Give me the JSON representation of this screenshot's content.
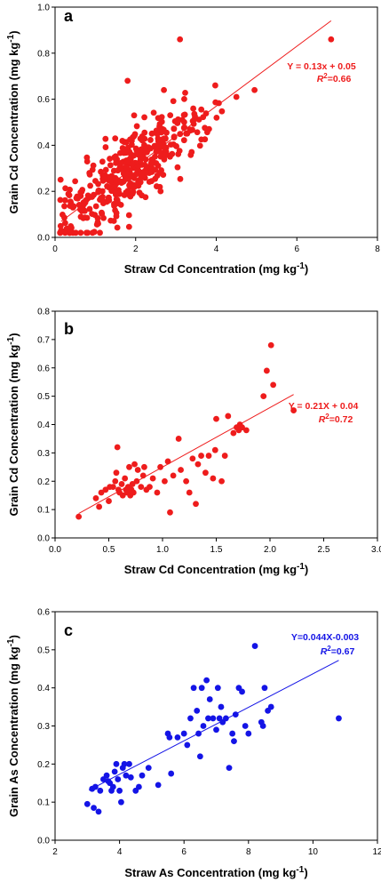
{
  "chart_data": [
    {
      "type": "scatter",
      "panel_label": "a",
      "xlabel": "Straw Cd Concentration (mg kg",
      "ylabel": "Grain Cd Concentration (mg kg",
      "label_exponent": "-1",
      "xlim": [
        0,
        8
      ],
      "ylim": [
        0,
        1.0
      ],
      "xticks": [
        "0",
        "2",
        "4",
        "6",
        "8"
      ],
      "yticks": [
        "0.0",
        "0.2",
        "0.4",
        "0.6",
        "0.8",
        "1.0"
      ],
      "color": "#ee1c1c",
      "equation": "Y = 0.13x + 0.05",
      "r2_value": "=0.66",
      "fit": {
        "slope": 0.13,
        "intercept": 0.05,
        "x_range": [
          0.15,
          6.85
        ]
      },
      "outliers": [
        [
          3.1,
          0.86
        ],
        [
          6.85,
          0.86
        ],
        [
          4.95,
          0.64
        ],
        [
          4.5,
          0.61
        ],
        [
          1.8,
          0.68
        ],
        [
          0.15,
          0.03
        ],
        [
          0.25,
          0.02
        ]
      ],
      "cluster": {
        "n": 420,
        "x_mean": 1.9,
        "x_sd": 0.95,
        "slope": 0.13,
        "intercept": 0.05,
        "noise_sd": 0.085,
        "x_min": 0.1,
        "x_max": 4.4
      }
    },
    {
      "type": "scatter",
      "panel_label": "b",
      "xlabel": "Straw Cd Concentration (mg kg",
      "ylabel": "Grain Cd Concentration (mg kg",
      "label_exponent": "-1",
      "xlim": [
        0,
        3.0
      ],
      "ylim": [
        0,
        0.8
      ],
      "xticks": [
        "0.0",
        "0.5",
        "1.0",
        "1.5",
        "2.0",
        "2.5",
        "3.0"
      ],
      "yticks": [
        "0.0",
        "0.1",
        "0.2",
        "0.3",
        "0.4",
        "0.5",
        "0.6",
        "0.7",
        "0.8"
      ],
      "color": "#ee1c1c",
      "equation": "Y = 0.21X + 0.04",
      "r2_value": "=0.72",
      "fit": {
        "slope": 0.21,
        "intercept": 0.04,
        "x_range": [
          0.22,
          2.22
        ]
      },
      "points": [
        [
          0.22,
          0.075
        ],
        [
          0.38,
          0.14
        ],
        [
          0.41,
          0.11
        ],
        [
          0.43,
          0.16
        ],
        [
          0.47,
          0.17
        ],
        [
          0.5,
          0.13
        ],
        [
          0.51,
          0.18
        ],
        [
          0.54,
          0.18
        ],
        [
          0.56,
          0.2
        ],
        [
          0.57,
          0.23
        ],
        [
          0.58,
          0.32
        ],
        [
          0.59,
          0.17
        ],
        [
          0.6,
          0.16
        ],
        [
          0.62,
          0.19
        ],
        [
          0.63,
          0.15
        ],
        [
          0.65,
          0.21
        ],
        [
          0.66,
          0.17
        ],
        [
          0.67,
          0.16
        ],
        [
          0.68,
          0.18
        ],
        [
          0.69,
          0.25
        ],
        [
          0.7,
          0.15
        ],
        [
          0.71,
          0.17
        ],
        [
          0.72,
          0.19
        ],
        [
          0.73,
          0.16
        ],
        [
          0.74,
          0.26
        ],
        [
          0.76,
          0.2
        ],
        [
          0.77,
          0.24
        ],
        [
          0.8,
          0.18
        ],
        [
          0.82,
          0.22
        ],
        [
          0.83,
          0.25
        ],
        [
          0.85,
          0.17
        ],
        [
          0.88,
          0.18
        ],
        [
          0.91,
          0.21
        ],
        [
          0.95,
          0.16
        ],
        [
          0.98,
          0.25
        ],
        [
          1.02,
          0.2
        ],
        [
          1.05,
          0.27
        ],
        [
          1.07,
          0.09
        ],
        [
          1.1,
          0.22
        ],
        [
          1.15,
          0.35
        ],
        [
          1.17,
          0.24
        ],
        [
          1.22,
          0.2
        ],
        [
          1.25,
          0.16
        ],
        [
          1.28,
          0.28
        ],
        [
          1.31,
          0.12
        ],
        [
          1.33,
          0.26
        ],
        [
          1.36,
          0.29
        ],
        [
          1.4,
          0.23
        ],
        [
          1.43,
          0.29
        ],
        [
          1.47,
          0.21
        ],
        [
          1.49,
          0.31
        ],
        [
          1.5,
          0.42
        ],
        [
          1.55,
          0.2
        ],
        [
          1.58,
          0.29
        ],
        [
          1.61,
          0.43
        ],
        [
          1.66,
          0.37
        ],
        [
          1.69,
          0.39
        ],
        [
          1.71,
          0.38
        ],
        [
          1.72,
          0.4
        ],
        [
          1.74,
          0.39
        ],
        [
          1.78,
          0.38
        ],
        [
          1.94,
          0.5
        ],
        [
          1.97,
          0.59
        ],
        [
          2.01,
          0.68
        ],
        [
          2.03,
          0.54
        ],
        [
          2.22,
          0.45
        ]
      ]
    },
    {
      "type": "scatter",
      "panel_label": "c",
      "xlabel": "Straw As Concentration (mg kg",
      "ylabel": "Grain As Concentration (mg kg",
      "label_exponent": "-1",
      "xlim": [
        2,
        12
      ],
      "ylim": [
        0,
        0.6
      ],
      "xticks": [
        "2",
        "4",
        "6",
        "8",
        "10",
        "12"
      ],
      "yticks": [
        "0.0",
        "0.1",
        "0.2",
        "0.3",
        "0.4",
        "0.5",
        "0.6"
      ],
      "color": "#1414e6",
      "equation": "Y=0.044X-0.003",
      "r2_value": "=0.67",
      "fit": {
        "slope": 0.044,
        "intercept": -0.003,
        "x_range": [
          3.05,
          10.8
        ]
      },
      "points": [
        [
          3.0,
          0.095
        ],
        [
          3.15,
          0.135
        ],
        [
          3.2,
          0.085
        ],
        [
          3.25,
          0.14
        ],
        [
          3.35,
          0.075
        ],
        [
          3.4,
          0.13
        ],
        [
          3.5,
          0.16
        ],
        [
          3.6,
          0.17
        ],
        [
          3.65,
          0.155
        ],
        [
          3.7,
          0.15
        ],
        [
          3.75,
          0.13
        ],
        [
          3.8,
          0.14
        ],
        [
          3.85,
          0.18
        ],
        [
          3.9,
          0.2
        ],
        [
          3.95,
          0.16
        ],
        [
          4.0,
          0.13
        ],
        [
          4.05,
          0.1
        ],
        [
          4.1,
          0.19
        ],
        [
          4.15,
          0.2
        ],
        [
          4.2,
          0.17
        ],
        [
          4.3,
          0.2
        ],
        [
          4.35,
          0.165
        ],
        [
          4.5,
          0.13
        ],
        [
          4.6,
          0.14
        ],
        [
          4.7,
          0.17
        ],
        [
          4.9,
          0.19
        ],
        [
          5.2,
          0.145
        ],
        [
          5.5,
          0.28
        ],
        [
          5.55,
          0.27
        ],
        [
          5.6,
          0.175
        ],
        [
          5.8,
          0.27
        ],
        [
          6.0,
          0.28
        ],
        [
          6.1,
          0.25
        ],
        [
          6.2,
          0.32
        ],
        [
          6.3,
          0.4
        ],
        [
          6.4,
          0.34
        ],
        [
          6.45,
          0.28
        ],
        [
          6.5,
          0.22
        ],
        [
          6.55,
          0.4
        ],
        [
          6.6,
          0.3
        ],
        [
          6.7,
          0.42
        ],
        [
          6.75,
          0.32
        ],
        [
          6.8,
          0.37
        ],
        [
          6.9,
          0.32
        ],
        [
          7.0,
          0.29
        ],
        [
          7.05,
          0.4
        ],
        [
          7.1,
          0.32
        ],
        [
          7.15,
          0.35
        ],
        [
          7.2,
          0.31
        ],
        [
          7.3,
          0.32
        ],
        [
          7.4,
          0.19
        ],
        [
          7.5,
          0.28
        ],
        [
          7.55,
          0.26
        ],
        [
          7.6,
          0.33
        ],
        [
          7.7,
          0.4
        ],
        [
          7.8,
          0.39
        ],
        [
          7.9,
          0.3
        ],
        [
          8.0,
          0.28
        ],
        [
          8.2,
          0.51
        ],
        [
          8.4,
          0.31
        ],
        [
          8.45,
          0.3
        ],
        [
          8.5,
          0.4
        ],
        [
          8.6,
          0.34
        ],
        [
          8.7,
          0.35
        ],
        [
          10.8,
          0.32
        ]
      ]
    }
  ]
}
